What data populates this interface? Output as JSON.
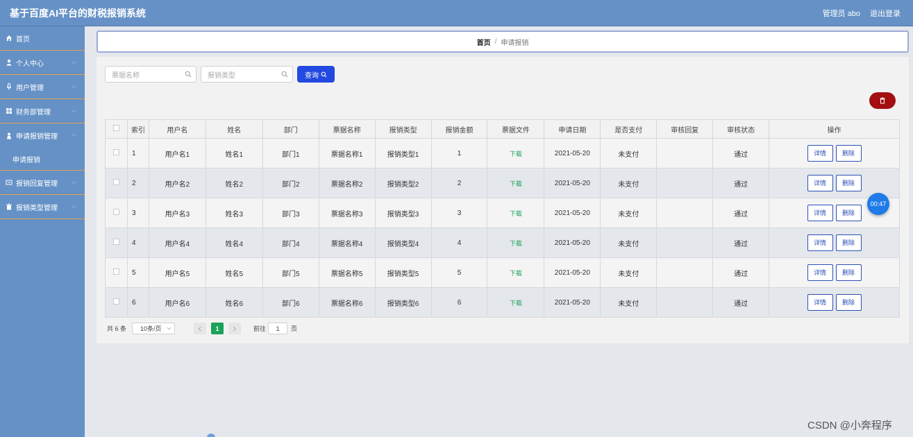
{
  "header": {
    "title": "基于百度AI平台的财税报销系统",
    "user_label": "管理员 abo",
    "logout_label": "退出登录"
  },
  "sidebar": {
    "items": [
      {
        "label": "首页",
        "icon": "home-icon"
      },
      {
        "label": "个人中心",
        "icon": "user-icon"
      },
      {
        "label": "用户管理",
        "icon": "mic-icon"
      },
      {
        "label": "财务部管理",
        "icon": "grid-icon"
      },
      {
        "label": "申请报销管理",
        "icon": "person-icon"
      },
      {
        "label": "报销回复管理",
        "icon": "reply-icon"
      },
      {
        "label": "报销类型管理",
        "icon": "trash-icon"
      }
    ],
    "sub_items": [
      {
        "label": "申请报销"
      }
    ]
  },
  "breadcrumb": {
    "home": "首页",
    "sep": "/",
    "current": "申请报销"
  },
  "search": {
    "name_placeholder": "票据名称",
    "type_placeholder": "报销类型",
    "query_label": "查询"
  },
  "table": {
    "headers": [
      "索引",
      "用户名",
      "姓名",
      "部门",
      "票据名称",
      "报销类型",
      "报销金额",
      "票据文件",
      "申请日期",
      "是否支付",
      "审核回复",
      "审核状态",
      "操作"
    ],
    "rows": [
      {
        "idx": "1",
        "username": "用户名1",
        "name": "姓名1",
        "dept": "部门1",
        "bill": "票据名称1",
        "type": "报销类型1",
        "amount": "1",
        "file": "下载",
        "date": "2021-05-20",
        "paid": "未支付",
        "reply": "",
        "status": "通过",
        "detail": "详情",
        "delete": "删除"
      },
      {
        "idx": "2",
        "username": "用户名2",
        "name": "姓名2",
        "dept": "部门2",
        "bill": "票据名称2",
        "type": "报销类型2",
        "amount": "2",
        "file": "下载",
        "date": "2021-05-20",
        "paid": "未支付",
        "reply": "",
        "status": "通过",
        "detail": "详情",
        "delete": "删除"
      },
      {
        "idx": "3",
        "username": "用户名3",
        "name": "姓名3",
        "dept": "部门3",
        "bill": "票据名称3",
        "type": "报销类型3",
        "amount": "3",
        "file": "下载",
        "date": "2021-05-20",
        "paid": "未支付",
        "reply": "",
        "status": "通过",
        "detail": "详情",
        "delete": "删除"
      },
      {
        "idx": "4",
        "username": "用户名4",
        "name": "姓名4",
        "dept": "部门4",
        "bill": "票据名称4",
        "type": "报销类型4",
        "amount": "4",
        "file": "下载",
        "date": "2021-05-20",
        "paid": "未支付",
        "reply": "",
        "status": "通过",
        "detail": "详情",
        "delete": "删除"
      },
      {
        "idx": "5",
        "username": "用户名5",
        "name": "姓名5",
        "dept": "部门5",
        "bill": "票据名称5",
        "type": "报销类型5",
        "amount": "5",
        "file": "下载",
        "date": "2021-05-20",
        "paid": "未支付",
        "reply": "",
        "status": "通过",
        "detail": "详情",
        "delete": "删除"
      },
      {
        "idx": "6",
        "username": "用户名6",
        "name": "姓名6",
        "dept": "部门6",
        "bill": "票据名称6",
        "type": "报销类型6",
        "amount": "6",
        "file": "下载",
        "date": "2021-05-20",
        "paid": "未支付",
        "reply": "",
        "status": "通过",
        "detail": "详情",
        "delete": "删除"
      }
    ]
  },
  "pagination": {
    "total": "共 6 条",
    "page_size": "10条/页",
    "current_page": "1",
    "goto_label": "前往",
    "goto_value": "1",
    "page_suffix": "页"
  },
  "timer": "00:47",
  "watermark": "CSDN @小奔程序",
  "colors": {
    "header_bg": "#6591c6",
    "query_button": "#2249e0",
    "delete_all": "#a30f11",
    "active_page": "#1aa25a",
    "download_link": "#1aa25a"
  }
}
